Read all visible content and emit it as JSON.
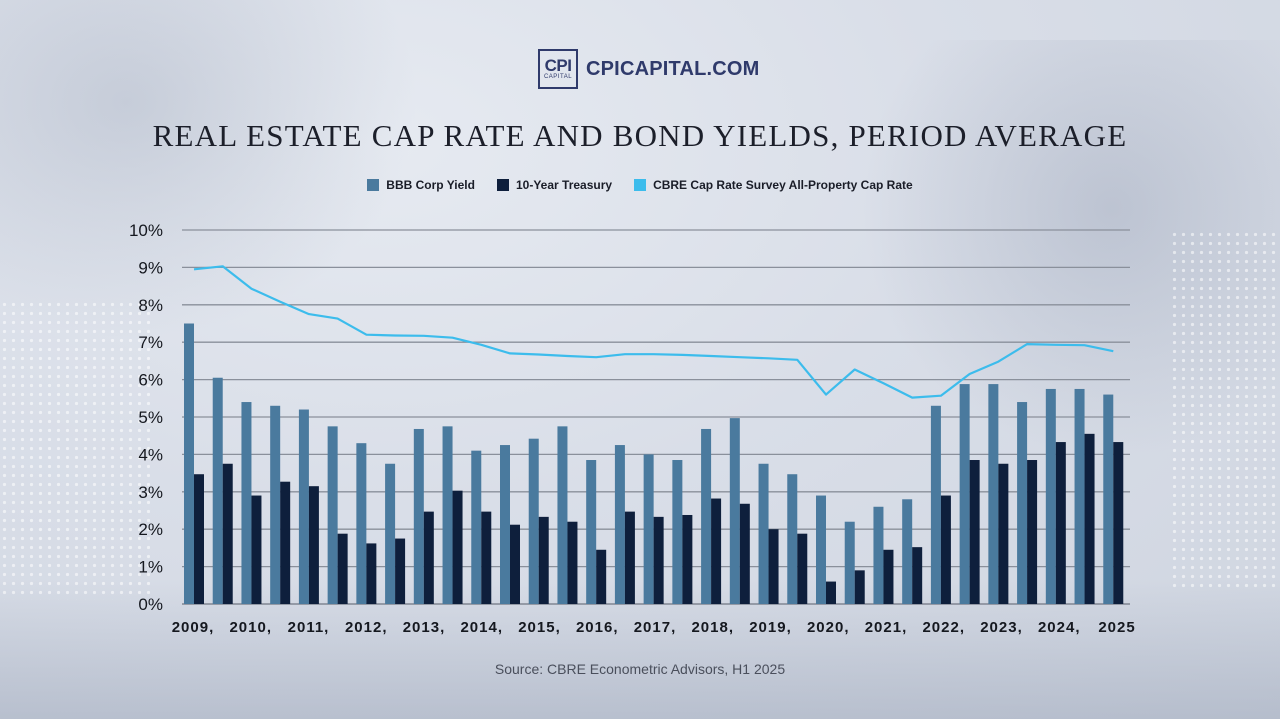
{
  "brand": {
    "logo_mark": "CPI",
    "logo_sub": "CAPITAL",
    "site": "CPICAPITAL.COM"
  },
  "source": "Source: CBRE Econometric Advisors, H1 2025",
  "chart_data": {
    "type": "bar",
    "title": "REAL ESTATE CAP RATE AND BOND YIELDS, PERIOD AVERAGE",
    "xlabel": "",
    "ylabel": "",
    "ylim": [
      0,
      10
    ],
    "yticks": [
      "0%",
      "1%",
      "2%",
      "3%",
      "4%",
      "5%",
      "6%",
      "7%",
      "8%",
      "9%",
      "10%"
    ],
    "grid": true,
    "legend": "top-center",
    "x_tick_labels": [
      "2009,",
      "2010,",
      "2011,",
      "2012,",
      "2013,",
      "2014,",
      "2015,",
      "2016,",
      "2017,",
      "2018,",
      "2019,",
      "2020,",
      "2021,",
      "2022,",
      "2023,",
      "2024,",
      "2025"
    ],
    "periods": 33,
    "series": [
      {
        "name": "BBB Corp Yield",
        "kind": "bar",
        "color": "#4a7a9e",
        "values": [
          7.5,
          6.05,
          5.4,
          5.3,
          5.2,
          4.75,
          4.3,
          3.75,
          4.68,
          4.75,
          4.1,
          4.25,
          4.42,
          4.75,
          3.85,
          4.25,
          4.0,
          3.85,
          4.68,
          4.97,
          3.75,
          3.47,
          2.9,
          2.2,
          2.6,
          2.8,
          5.3,
          5.88,
          5.88,
          5.4,
          5.75,
          5.75,
          5.6
        ]
      },
      {
        "name": "10-Year Treasury",
        "kind": "bar",
        "color": "#0e1f3c",
        "values": [
          3.47,
          3.75,
          2.9,
          3.27,
          3.15,
          1.88,
          1.62,
          1.75,
          2.47,
          3.03,
          2.47,
          2.12,
          2.33,
          2.2,
          1.45,
          2.47,
          2.33,
          2.38,
          2.82,
          2.68,
          2.0,
          1.88,
          0.6,
          0.9,
          1.45,
          1.52,
          2.9,
          3.85,
          3.75,
          3.85,
          4.33,
          4.55,
          4.33
        ]
      },
      {
        "name": "CBRE Cap Rate Survey All-Property Cap Rate",
        "kind": "line",
        "color": "#3cbcec",
        "values": [
          8.95,
          9.03,
          8.43,
          8.08,
          7.75,
          7.63,
          7.2,
          7.18,
          7.17,
          7.12,
          6.93,
          6.7,
          6.67,
          6.63,
          6.6,
          6.68,
          6.68,
          6.66,
          6.63,
          6.6,
          6.57,
          6.53,
          5.6,
          6.27,
          5.9,
          5.52,
          5.57,
          6.15,
          6.48,
          6.95,
          6.93,
          6.92,
          6.76
        ]
      }
    ]
  }
}
